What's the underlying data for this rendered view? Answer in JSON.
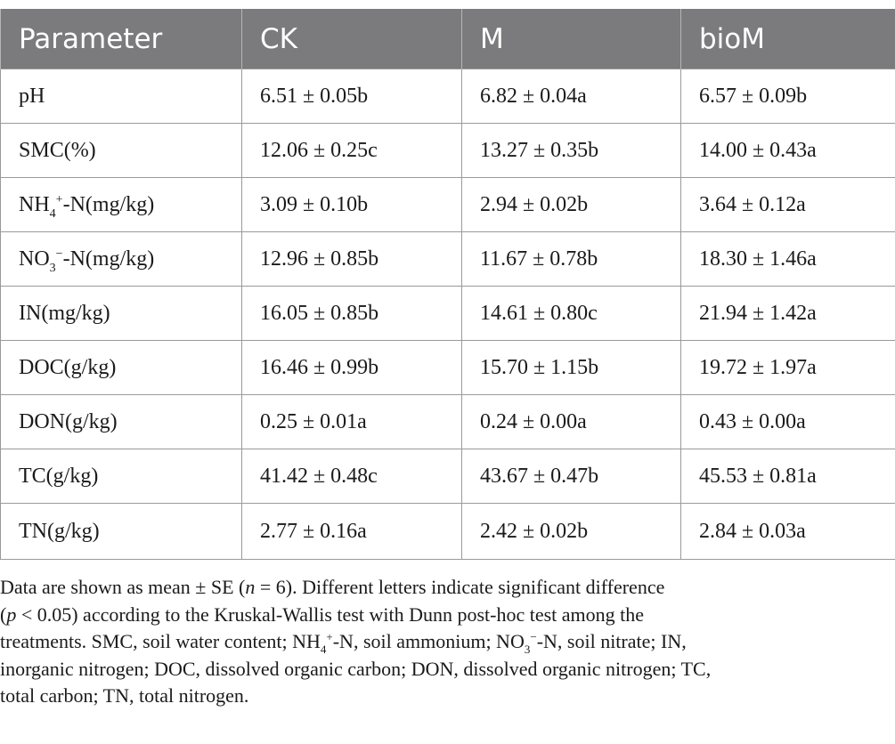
{
  "table": {
    "headers": [
      "Parameter",
      "CK",
      "M",
      "bioM"
    ],
    "rows": [
      {
        "param": {
          "pre": "pH"
        },
        "values": [
          "6.51 ± 0.05b",
          "6.82 ± 0.04a",
          "6.57 ± 0.09b"
        ]
      },
      {
        "param": {
          "pre": "SMC(%)"
        },
        "values": [
          "12.06 ± 0.25c",
          "13.27 ± 0.35b",
          "14.00 ± 0.43a"
        ]
      },
      {
        "param": {
          "pre": "NH",
          "sub": "4",
          "sup": "+",
          "post": "-N(mg/kg)"
        },
        "values": [
          "3.09 ± 0.10b",
          "2.94 ± 0.02b",
          "3.64 ± 0.12a"
        ]
      },
      {
        "param": {
          "pre": "NO",
          "sub": "3",
          "sup": "−",
          "post": "-N(mg/kg)"
        },
        "values": [
          "12.96 ± 0.85b",
          "11.67 ± 0.78b",
          "18.30 ± 1.46a"
        ]
      },
      {
        "param": {
          "pre": "IN(mg/kg)"
        },
        "values": [
          "16.05 ± 0.85b",
          "14.61 ± 0.80c",
          "21.94 ± 1.42a"
        ]
      },
      {
        "param": {
          "pre": "DOC(g/kg)"
        },
        "values": [
          "16.46 ± 0.99b",
          "15.70 ± 1.15b",
          "19.72 ± 1.97a"
        ]
      },
      {
        "param": {
          "pre": "DON(g/kg)"
        },
        "values": [
          "0.25 ± 0.01a",
          "0.24 ± 0.00a",
          "0.43 ± 0.00a"
        ]
      },
      {
        "param": {
          "pre": "TC(g/kg)"
        },
        "values": [
          "41.42 ± 0.48c",
          "43.67 ± 0.47b",
          "45.53 ± 0.81a"
        ]
      },
      {
        "param": {
          "pre": "TN(g/kg)"
        },
        "values": [
          "2.77 ± 0.16a",
          "2.42 ± 0.02b",
          "2.84 ± 0.03a"
        ]
      }
    ]
  },
  "footnote": {
    "s1": "Data are shown as mean ± SE (",
    "n_var": "n",
    "s2": " = 6). Different letters indicate significant difference",
    "s3": "(",
    "p_var": "p",
    "s4": " < 0.05) according to the Kruskal-Wallis test with Dunn post-hoc test among the",
    "s5": "treatments. SMC, soil water content; NH",
    "nh_sub": "4",
    "nh_sup": "+",
    "s6": "-N, soil ammonium; NO",
    "no_sub": "3",
    "no_sup": "−",
    "s7": "-N, soil nitrate; IN,",
    "s8": "inorganic nitrogen; DOC, dissolved organic carbon; DON, dissolved organic nitrogen; TC,",
    "s9": "total carbon; TN, total nitrogen."
  },
  "colors": {
    "header_bg": "#7b7b7d",
    "header_text": "#ffffff",
    "border": "#9a9a9a"
  }
}
